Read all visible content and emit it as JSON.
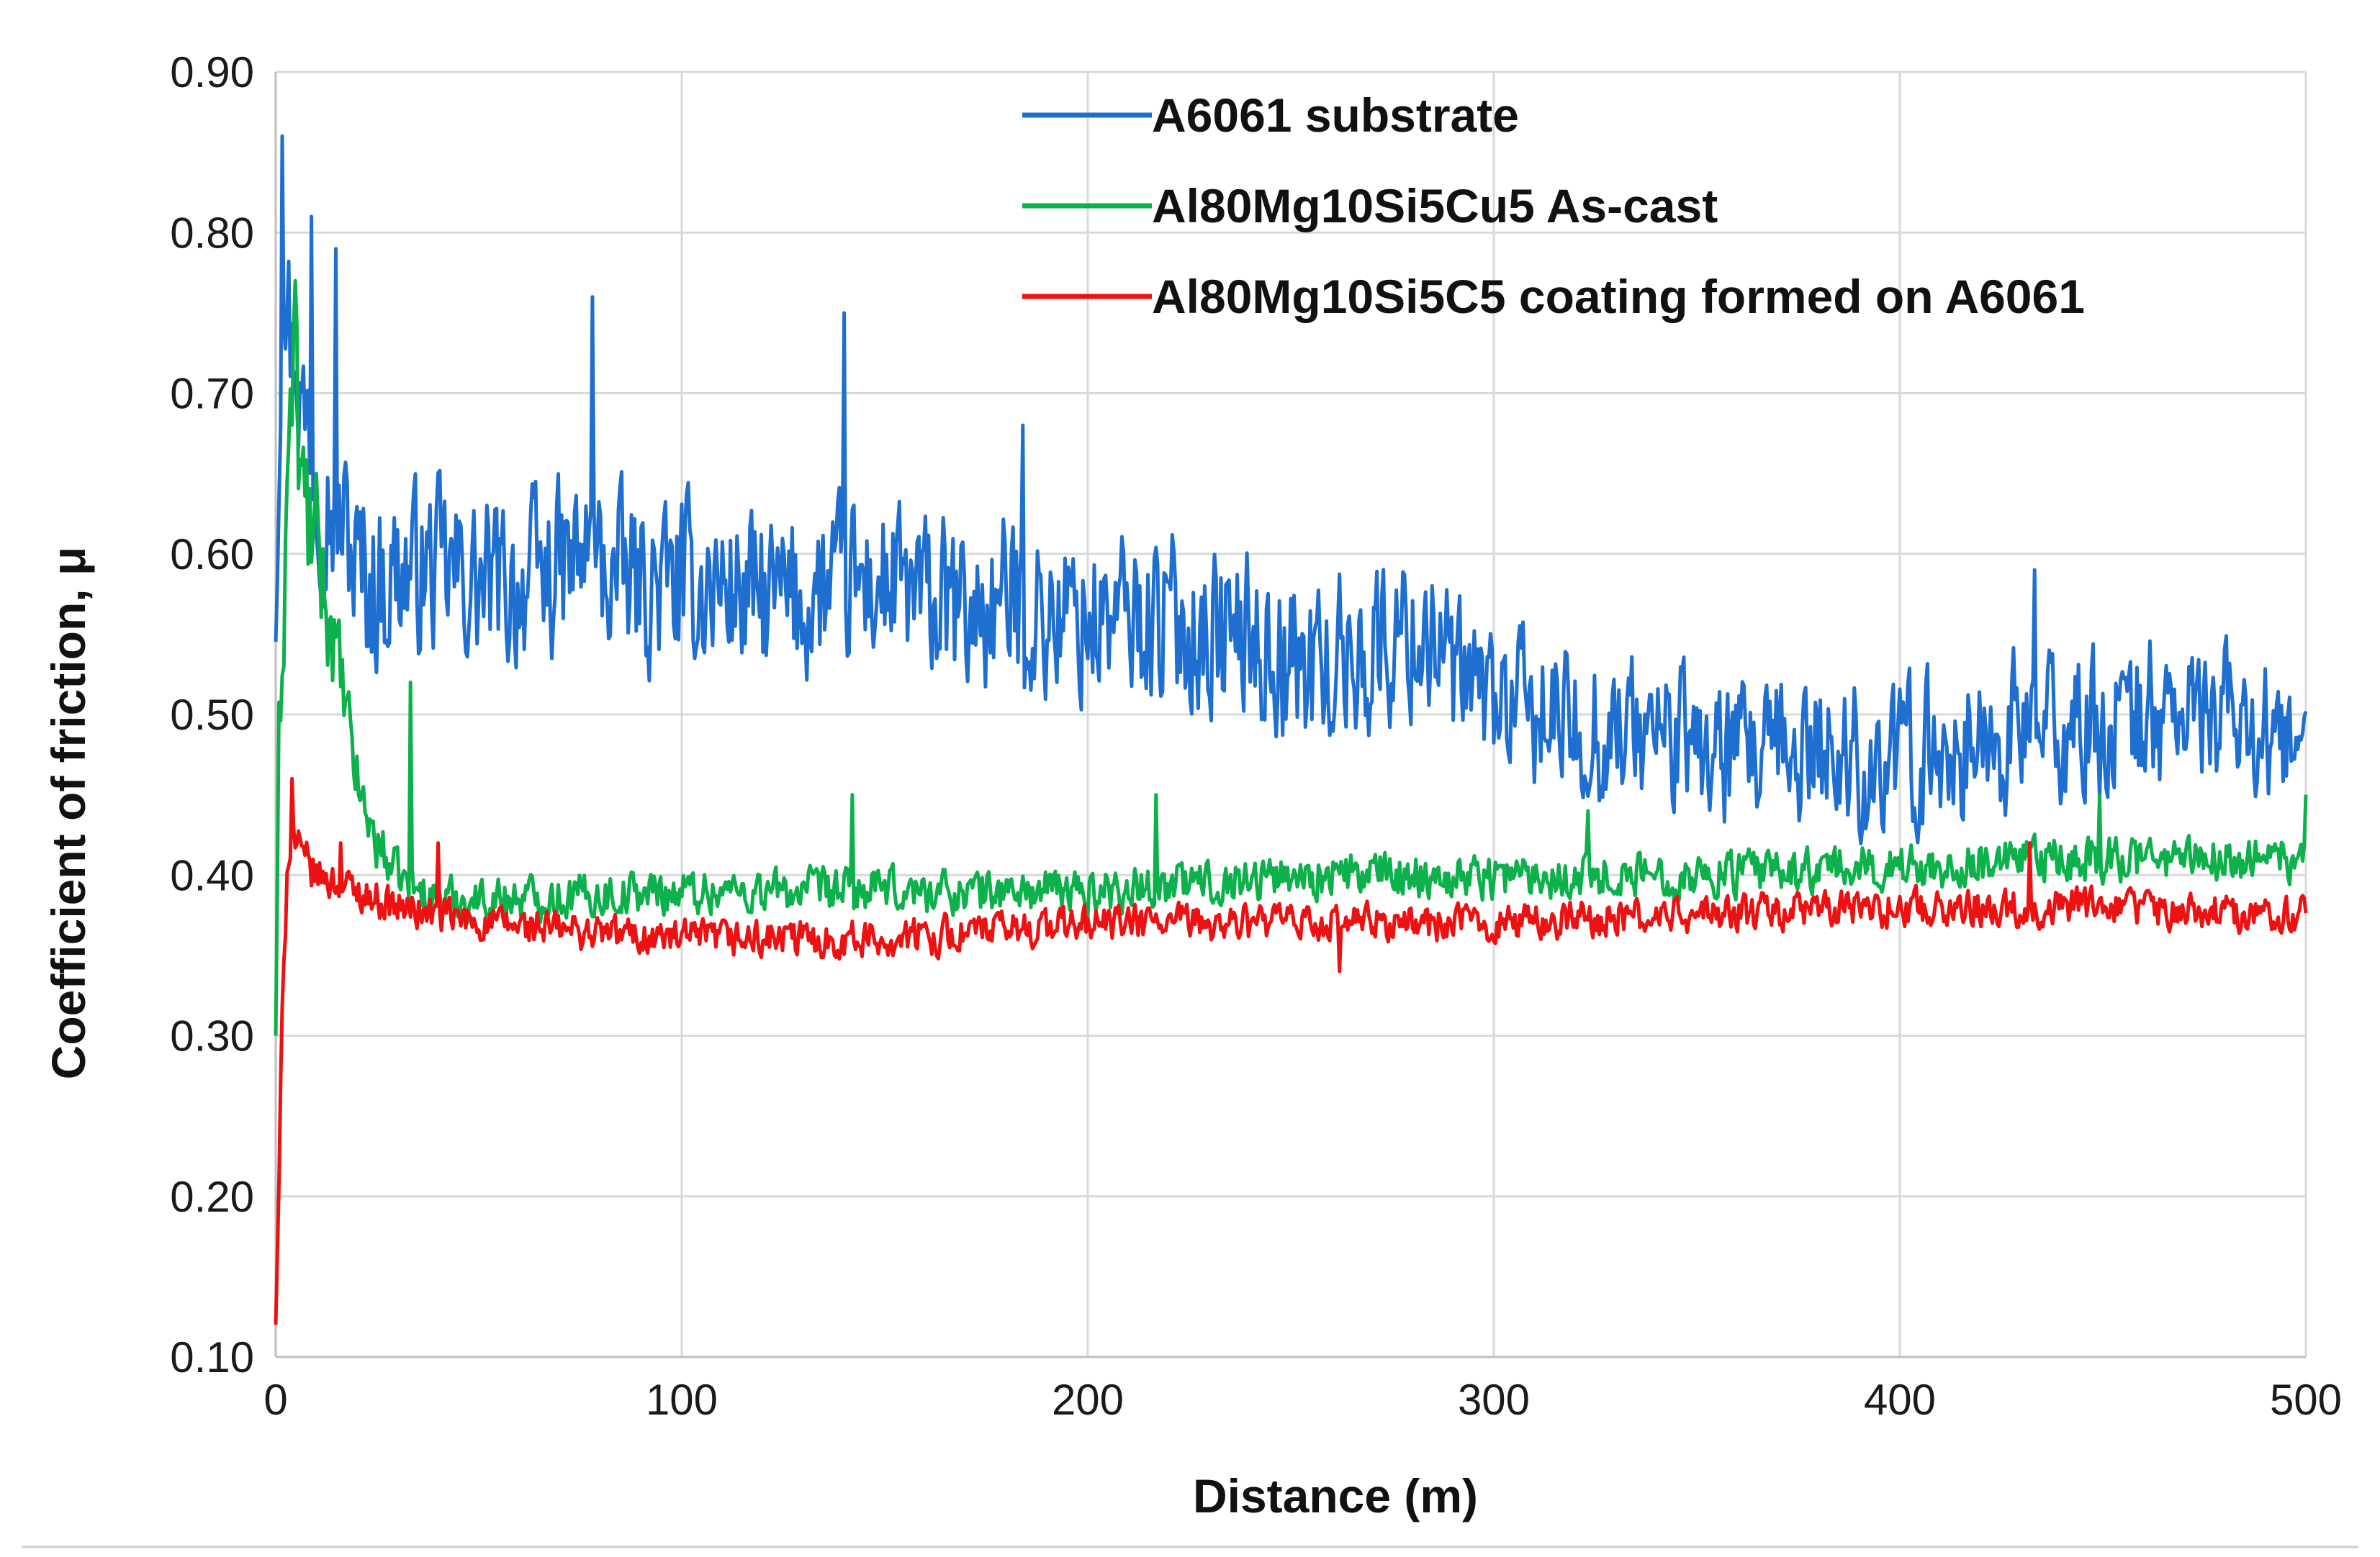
{
  "chart_data": {
    "type": "line",
    "title": "",
    "xlabel": "Distance (m)",
    "ylabel": "Coefficient of friction, μ",
    "xlim": [
      0,
      500
    ],
    "ylim": [
      0.1,
      0.9
    ],
    "grid": true,
    "legend_position": "top-right",
    "x_ticks": [
      "0",
      "100",
      "200",
      "300",
      "400",
      "500"
    ],
    "y_ticks": [
      "0.10",
      "0.20",
      "0.30",
      "0.40",
      "0.50",
      "0.60",
      "0.70",
      "0.80",
      "0.90"
    ],
    "series": [
      {
        "name": "A6061 substrate",
        "color": "#1f6fd1",
        "x": [
          0,
          1,
          2,
          3,
          4,
          5,
          6,
          7,
          8,
          10,
          12,
          14,
          16,
          18,
          20,
          25,
          30,
          40,
          50,
          60,
          70,
          78,
          80,
          90,
          100,
          110,
          120,
          130,
          140,
          150,
          160,
          170,
          180,
          190,
          200,
          210,
          220,
          230,
          240,
          250,
          260,
          270,
          280,
          285,
          290,
          300,
          310,
          320,
          330,
          340,
          350,
          360,
          370,
          380,
          390,
          400,
          410,
          420,
          430,
          440,
          450,
          460,
          470,
          480,
          490,
          500
        ],
        "mean": [
          0.55,
          0.7,
          0.8,
          0.76,
          0.72,
          0.74,
          0.7,
          0.68,
          0.69,
          0.66,
          0.64,
          0.63,
          0.62,
          0.61,
          0.59,
          0.58,
          0.59,
          0.59,
          0.58,
          0.58,
          0.59,
          0.6,
          0.59,
          0.58,
          0.58,
          0.58,
          0.57,
          0.57,
          0.58,
          0.58,
          0.57,
          0.56,
          0.57,
          0.56,
          0.56,
          0.56,
          0.56,
          0.55,
          0.55,
          0.53,
          0.53,
          0.54,
          0.55,
          0.55,
          0.52,
          0.51,
          0.5,
          0.49,
          0.49,
          0.49,
          0.48,
          0.47,
          0.47,
          0.48,
          0.47,
          0.47,
          0.48,
          0.48,
          0.49,
          0.49,
          0.49,
          0.5,
          0.5,
          0.5,
          0.49,
          0.47
        ],
        "noise": [
          0.01,
          0.05,
          0.05,
          0.05,
          0.05,
          0.05,
          0.05,
          0.05,
          0.05,
          0.05,
          0.05,
          0.05,
          0.05,
          0.05,
          0.05,
          0.05,
          0.045,
          0.045,
          0.045,
          0.045,
          0.045,
          0.045,
          0.045,
          0.045,
          0.045,
          0.045,
          0.045,
          0.045,
          0.045,
          0.045,
          0.045,
          0.045,
          0.045,
          0.045,
          0.045,
          0.045,
          0.045,
          0.045,
          0.045,
          0.045,
          0.045,
          0.045,
          0.045,
          0.045,
          0.04,
          0.04,
          0.04,
          0.04,
          0.04,
          0.04,
          0.04,
          0.04,
          0.04,
          0.04,
          0.04,
          0.04,
          0.04,
          0.04,
          0.04,
          0.04,
          0.04,
          0.04,
          0.04,
          0.035,
          0.035,
          0.025
        ],
        "peaks": [
          [
            1.5,
            0.86
          ],
          [
            9,
            0.81
          ],
          [
            15,
            0.79
          ],
          [
            78,
            0.76
          ],
          [
            140,
            0.75
          ],
          [
            184,
            0.68
          ],
          [
            285,
            0.58
          ],
          [
            433,
            0.59
          ]
        ]
      },
      {
        "name": "Al80Mg10Si5Cu5 As-cast",
        "color": "#0db14b",
        "x": [
          0,
          1,
          2,
          3,
          4,
          5,
          6,
          8,
          10,
          12,
          14,
          16,
          18,
          20,
          22,
          25,
          30,
          35,
          40,
          50,
          100,
          150,
          200,
          250,
          300,
          350,
          400,
          450,
          500
        ],
        "mean": [
          0.3,
          0.5,
          0.58,
          0.66,
          0.7,
          0.72,
          0.64,
          0.62,
          0.6,
          0.58,
          0.55,
          0.52,
          0.49,
          0.46,
          0.44,
          0.42,
          0.4,
          0.39,
          0.385,
          0.385,
          0.39,
          0.39,
          0.39,
          0.4,
          0.4,
          0.4,
          0.405,
          0.41,
          0.41
        ],
        "noise": [
          0.0,
          0.05,
          0.05,
          0.05,
          0.05,
          0.05,
          0.05,
          0.045,
          0.04,
          0.035,
          0.03,
          0.025,
          0.02,
          0.018,
          0.016,
          0.015,
          0.012,
          0.012,
          0.012,
          0.012,
          0.012,
          0.012,
          0.012,
          0.012,
          0.012,
          0.012,
          0.012,
          0.012,
          0.012
        ],
        "peaks": [
          [
            5,
            0.77
          ],
          [
            33,
            0.52
          ],
          [
            142,
            0.45
          ],
          [
            217,
            0.45
          ],
          [
            323,
            0.44
          ],
          [
            449,
            0.45
          ],
          [
            500,
            0.45
          ]
        ]
      },
      {
        "name": "Al80Mg10Si5C5 coating formed on A6061",
        "color": "#ee1111",
        "x": [
          0,
          1,
          2,
          3,
          4,
          5,
          6,
          8,
          10,
          15,
          20,
          30,
          40,
          50,
          100,
          150,
          200,
          250,
          300,
          350,
          400,
          450,
          500
        ],
        "mean": [
          0.12,
          0.22,
          0.36,
          0.42,
          0.43,
          0.42,
          0.41,
          0.405,
          0.4,
          0.395,
          0.39,
          0.38,
          0.375,
          0.37,
          0.36,
          0.36,
          0.37,
          0.37,
          0.37,
          0.375,
          0.38,
          0.38,
          0.375
        ],
        "noise": [
          0.0,
          0.02,
          0.02,
          0.02,
          0.015,
          0.015,
          0.012,
          0.012,
          0.01,
          0.01,
          0.01,
          0.01,
          0.01,
          0.01,
          0.01,
          0.01,
          0.01,
          0.01,
          0.01,
          0.01,
          0.01,
          0.01,
          0.01
        ],
        "peaks": [
          [
            4,
            0.46
          ],
          [
            16,
            0.42
          ],
          [
            40,
            0.42
          ],
          [
            262,
            0.34
          ],
          [
            432,
            0.42
          ]
        ]
      }
    ]
  }
}
